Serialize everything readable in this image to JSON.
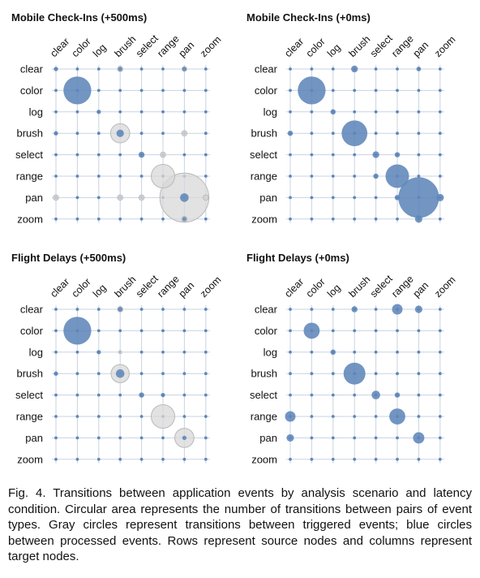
{
  "chart_data": [
    {
      "type": "bubble-matrix",
      "title": "Mobile Check-Ins (+500ms)",
      "rows": [
        "clear",
        "color",
        "log",
        "brush",
        "select",
        "range",
        "pan",
        "zoom"
      ],
      "columns": [
        "clear",
        "color",
        "log",
        "brush",
        "select",
        "range",
        "pan",
        "zoom"
      ],
      "triggered": [
        {
          "row": "clear",
          "col": "brush",
          "value": 1.5
        },
        {
          "row": "clear",
          "col": "pan",
          "value": 1.2
        },
        {
          "row": "brush",
          "col": "brush",
          "value": 20
        },
        {
          "row": "brush",
          "col": "pan",
          "value": 1.5
        },
        {
          "row": "select",
          "col": "range",
          "value": 1.5
        },
        {
          "row": "range",
          "col": "range",
          "value": 30
        },
        {
          "row": "pan",
          "col": "clear",
          "value": 1.5
        },
        {
          "row": "pan",
          "col": "brush",
          "value": 1.5
        },
        {
          "row": "pan",
          "col": "select",
          "value": 1.5
        },
        {
          "row": "pan",
          "col": "pan",
          "value": 130
        },
        {
          "row": "pan",
          "col": "zoom",
          "value": 1.5
        },
        {
          "row": "zoom",
          "col": "pan",
          "value": 1.5
        }
      ],
      "processed": [
        {
          "row": "clear",
          "col": "clear",
          "value": 1
        },
        {
          "row": "clear",
          "col": "brush",
          "value": 1
        },
        {
          "row": "clear",
          "col": "pan",
          "value": 1
        },
        {
          "row": "color",
          "col": "color",
          "value": 42
        },
        {
          "row": "log",
          "col": "log",
          "value": 1
        },
        {
          "row": "brush",
          "col": "clear",
          "value": 1
        },
        {
          "row": "brush",
          "col": "brush",
          "value": 3
        },
        {
          "row": "select",
          "col": "select",
          "value": 2
        },
        {
          "row": "pan",
          "col": "pan",
          "value": 4
        },
        {
          "row": "zoom",
          "col": "pan",
          "value": 0.5
        }
      ]
    },
    {
      "type": "bubble-matrix",
      "title": "Mobile Check-Ins (+0ms)",
      "rows": [
        "clear",
        "color",
        "log",
        "brush",
        "select",
        "range",
        "pan",
        "zoom"
      ],
      "columns": [
        "clear",
        "color",
        "log",
        "brush",
        "select",
        "range",
        "pan",
        "zoom"
      ],
      "triggered": [],
      "processed": [
        {
          "row": "clear",
          "col": "brush",
          "value": 2.5
        },
        {
          "row": "clear",
          "col": "pan",
          "value": 1.2
        },
        {
          "row": "color",
          "col": "color",
          "value": 42
        },
        {
          "row": "log",
          "col": "log",
          "value": 1.5
        },
        {
          "row": "brush",
          "col": "clear",
          "value": 1.5
        },
        {
          "row": "brush",
          "col": "brush",
          "value": 36
        },
        {
          "row": "select",
          "col": "select",
          "value": 2.5
        },
        {
          "row": "select",
          "col": "range",
          "value": 1.5
        },
        {
          "row": "range",
          "col": "select",
          "value": 1.5
        },
        {
          "row": "range",
          "col": "range",
          "value": 30
        },
        {
          "row": "pan",
          "col": "range",
          "value": 1.5
        },
        {
          "row": "pan",
          "col": "pan",
          "value": 90
        },
        {
          "row": "pan",
          "col": "zoom",
          "value": 3
        },
        {
          "row": "zoom",
          "col": "pan",
          "value": 3
        }
      ]
    },
    {
      "type": "bubble-matrix",
      "title": "Flight Delays (+500ms)",
      "rows": [
        "clear",
        "color",
        "log",
        "brush",
        "select",
        "range",
        "pan",
        "zoom"
      ],
      "columns": [
        "clear",
        "color",
        "log",
        "brush",
        "select",
        "range",
        "pan",
        "zoom"
      ],
      "triggered": [
        {
          "row": "clear",
          "col": "brush",
          "value": 1.5
        },
        {
          "row": "log",
          "col": "brush",
          "value": 0.5
        },
        {
          "row": "brush",
          "col": "brush",
          "value": 18
        },
        {
          "row": "range",
          "col": "range",
          "value": 30
        },
        {
          "row": "pan",
          "col": "pan",
          "value": 20
        }
      ],
      "processed": [
        {
          "row": "clear",
          "col": "brush",
          "value": 1.2
        },
        {
          "row": "color",
          "col": "color",
          "value": 42
        },
        {
          "row": "log",
          "col": "log",
          "value": 1
        },
        {
          "row": "brush",
          "col": "clear",
          "value": 1
        },
        {
          "row": "brush",
          "col": "brush",
          "value": 4
        },
        {
          "row": "select",
          "col": "select",
          "value": 1.5
        },
        {
          "row": "select",
          "col": "range",
          "value": 1
        },
        {
          "row": "pan",
          "col": "pan",
          "value": 1
        }
      ]
    },
    {
      "type": "bubble-matrix",
      "title": "Flight Delays (+0ms)",
      "rows": [
        "clear",
        "color",
        "log",
        "brush",
        "select",
        "range",
        "pan",
        "zoom"
      ],
      "columns": [
        "clear",
        "color",
        "log",
        "brush",
        "select",
        "range",
        "pan",
        "zoom"
      ],
      "triggered": [],
      "processed": [
        {
          "row": "clear",
          "col": "brush",
          "value": 2
        },
        {
          "row": "clear",
          "col": "range",
          "value": 6
        },
        {
          "row": "clear",
          "col": "pan",
          "value": 3
        },
        {
          "row": "color",
          "col": "color",
          "value": 14
        },
        {
          "row": "log",
          "col": "log",
          "value": 1.5
        },
        {
          "row": "brush",
          "col": "brush",
          "value": 26
        },
        {
          "row": "select",
          "col": "select",
          "value": 4
        },
        {
          "row": "select",
          "col": "range",
          "value": 1.5
        },
        {
          "row": "range",
          "col": "clear",
          "value": 6
        },
        {
          "row": "range",
          "col": "range",
          "value": 14
        },
        {
          "row": "pan",
          "col": "clear",
          "value": 3
        },
        {
          "row": "pan",
          "col": "pan",
          "value": 7
        }
      ]
    }
  ],
  "caption": "Fig. 4. Transitions between application events by analysis scenario and latency condition. Circular area represents the number of transitions between pairs of event types. Gray circles represent transitions between triggered events; blue circles between processed events. Rows represent source nodes and columns represent target nodes.",
  "colors": {
    "processed": "#5f86b9",
    "triggered_fill": "#d8d8d8",
    "triggered_stroke": "#b9b9b9",
    "grid": "#c9d3e2"
  }
}
